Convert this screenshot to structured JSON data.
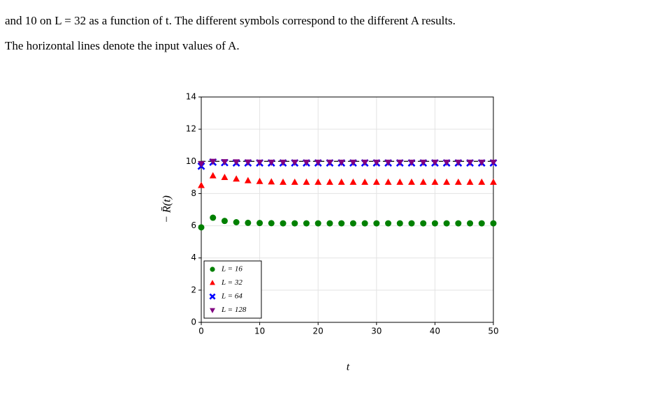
{
  "text": {
    "lines": [
      "and 10 on L = 32 as a function of t. The different symbols correspond to the different A results.",
      "The horizontal lines denote the input values of A."
    ]
  },
  "chart_data": {
    "type": "scatter",
    "x_label": "t",
    "y_label": "− R̄(t)",
    "x": [
      0,
      2,
      4,
      6,
      8,
      10,
      12,
      14,
      16,
      18,
      20,
      22,
      24,
      26,
      28,
      30,
      32,
      34,
      36,
      38,
      40,
      42,
      44,
      46,
      48,
      50
    ],
    "series": [
      {
        "name": "L = 16",
        "color": "#008000",
        "marker": "circle",
        "values": [
          5.9,
          6.5,
          6.3,
          6.22,
          6.18,
          6.17,
          6.16,
          6.15,
          6.15,
          6.15,
          6.15,
          6.15,
          6.15,
          6.15,
          6.15,
          6.15,
          6.15,
          6.15,
          6.15,
          6.15,
          6.15,
          6.15,
          6.15,
          6.15,
          6.15,
          6.15
        ]
      },
      {
        "name": "L = 32",
        "color": "#ff0000",
        "marker": "triangle-up",
        "values": [
          8.5,
          9.1,
          9.0,
          8.9,
          8.8,
          8.75,
          8.72,
          8.7,
          8.7,
          8.7,
          8.7,
          8.7,
          8.7,
          8.7,
          8.7,
          8.7,
          8.7,
          8.7,
          8.7,
          8.7,
          8.7,
          8.7,
          8.7,
          8.7,
          8.7,
          8.7
        ]
      },
      {
        "name": "L = 64",
        "color": "#0000ff",
        "marker": "x",
        "values": [
          9.7,
          9.95,
          9.92,
          9.9,
          9.9,
          9.9,
          9.9,
          9.9,
          9.9,
          9.9,
          9.9,
          9.9,
          9.9,
          9.9,
          9.9,
          9.9,
          9.9,
          9.9,
          9.9,
          9.9,
          9.9,
          9.9,
          9.9,
          9.9,
          9.9,
          9.9
        ]
      },
      {
        "name": "L = 128",
        "color": "#800080",
        "marker": "triangle-down",
        "values": [
          9.85,
          10.0,
          9.98,
          9.97,
          9.96,
          9.95,
          9.95,
          9.95,
          9.95,
          9.95,
          9.95,
          9.95,
          9.95,
          9.95,
          9.95,
          9.95,
          9.95,
          9.95,
          9.95,
          9.95,
          9.95,
          9.95,
          9.95,
          9.95,
          9.95,
          9.95
        ]
      }
    ],
    "hlines": [
      10
    ],
    "xlim": [
      0,
      50
    ],
    "xticks": [
      0,
      10,
      20,
      30,
      40,
      50
    ],
    "ylim": [
      0,
      14
    ],
    "yticks": [
      0,
      2,
      4,
      6,
      8,
      10,
      12,
      14
    ],
    "grid": true,
    "legend": "lower left"
  }
}
